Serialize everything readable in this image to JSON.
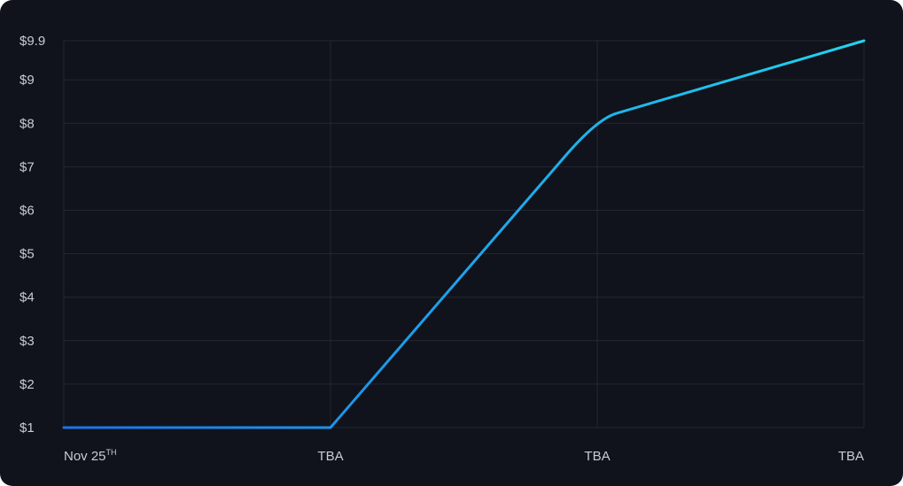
{
  "chart_data": {
    "type": "line",
    "title": "",
    "xlabel": "",
    "ylabel": "",
    "categories": [
      {
        "label": "Nov 25",
        "sup": "TH"
      },
      {
        "label": "TBA",
        "sup": ""
      },
      {
        "label": "TBA",
        "sup": ""
      },
      {
        "label": "TBA",
        "sup": ""
      }
    ],
    "x": [
      0,
      1,
      2,
      3
    ],
    "values": [
      1,
      1,
      8.1,
      9.9
    ],
    "ylim": [
      1,
      9.9
    ],
    "y_ticks": [
      {
        "value": 1,
        "label": "$1"
      },
      {
        "value": 2,
        "label": "$2"
      },
      {
        "value": 3,
        "label": "$3"
      },
      {
        "value": 4,
        "label": "$4"
      },
      {
        "value": 5,
        "label": "$5"
      },
      {
        "value": 6,
        "label": "$6"
      },
      {
        "value": 7,
        "label": "$7"
      },
      {
        "value": 8,
        "label": "$8"
      },
      {
        "value": 9,
        "label": "$9"
      },
      {
        "value": 9.9,
        "label": "$9.9"
      }
    ],
    "grid": true,
    "line_gradient": [
      "#1a73e8",
      "#22d3ee"
    ],
    "background": "#10131b"
  }
}
